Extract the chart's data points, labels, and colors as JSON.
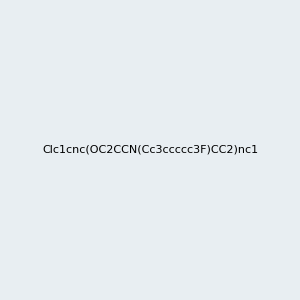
{
  "smiles": "Clc1cnc(OC2CCN(Cc3ccccc3F)CC2)nc1",
  "image_size": 300,
  "background_color": "#e8eef2"
}
